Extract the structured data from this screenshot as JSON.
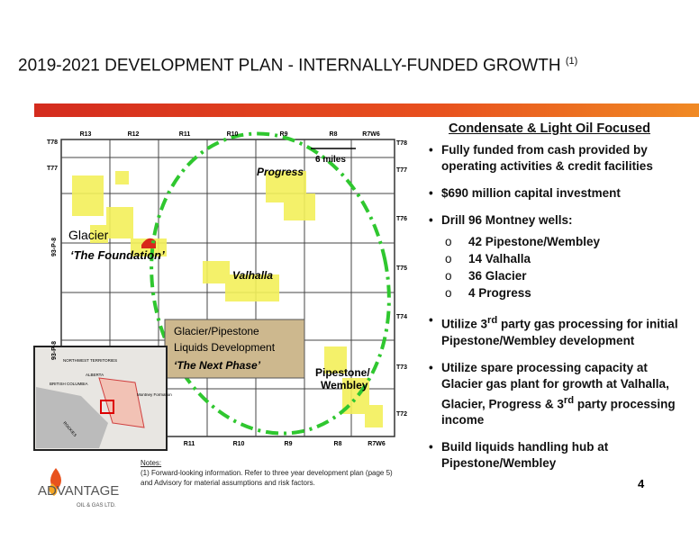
{
  "header": {
    "title": "2019-2021 DEVELOPMENT PLAN - INTERNALLY-FUNDED GROWTH",
    "title_note": "(1)"
  },
  "map": {
    "range_labels_top": [
      "R13",
      "R12",
      "R11",
      "R10",
      "R9",
      "R8",
      "R7W6"
    ],
    "range_labels_bottom": [
      "R11",
      "R10",
      "R9",
      "R8",
      "R7W6"
    ],
    "township_labels_left": [
      "T78",
      "T77"
    ],
    "township_labels_right": [
      "T78",
      "T77",
      "T76",
      "T75",
      "T74",
      "T73",
      "T72"
    ],
    "sheet_labels": [
      "93-P-8",
      "93-P-8"
    ],
    "scale": "6 miles",
    "areas": {
      "progress": "Progress",
      "glacier": "Glacier",
      "glacier_sub": "‘The Foundation’",
      "valhalla": "Valhalla",
      "pipestone": "Pipestone/",
      "wembley": "Wembley"
    },
    "callout": {
      "lines": [
        "Glacier/Pipestone",
        "Liquids Development",
        "‘The Next Phase’"
      ]
    },
    "inset": {
      "labels": [
        "NORTHWEST TERRITORIES",
        "ALBERTA",
        "BRITISH COLUMBIA",
        "Montney Formation",
        "ROCKIES"
      ]
    }
  },
  "panel": {
    "heading": "Condensate & Light Oil Focused",
    "bullets": [
      {
        "text": "Fully funded from cash provided by operating activities & credit facilities"
      },
      {
        "text": "$690 million capital investment"
      },
      {
        "text": "Drill 96 Montney wells:",
        "sub": [
          "42 Pipestone/Wembley",
          "14 Valhalla",
          "36 Glacier",
          "4 Progress"
        ]
      },
      {
        "text": "Utilize 3",
        "sup": "rd",
        "rest": " party gas processing for initial Pipestone/Wembley development"
      },
      {
        "text": "Utilize spare processing capacity at Glacier gas plant for growth at Valhalla, Glacier, Progress & 3",
        "sup": "rd",
        "rest": " party processing income"
      },
      {
        "text": "Build liquids handling hub at Pipestone/Wembley"
      }
    ]
  },
  "notes": {
    "heading": "Notes:",
    "text": "(1) Forward-looking information. Refer to three year development plan (page 5) and Advisory for material assumptions and risk factors."
  },
  "logo": {
    "name": "ADVANTAGE",
    "subtitle": "OIL & GAS LTD."
  },
  "page_number": "4"
}
